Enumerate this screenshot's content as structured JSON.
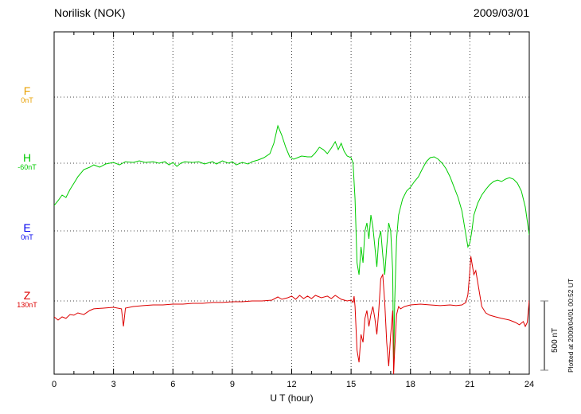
{
  "header": {
    "title": "Norilisk (NOK)",
    "date": "2009/03/01"
  },
  "footer": {
    "plotted_note": "Plotted at 2009/04/01 00:52 UT"
  },
  "chart_data": {
    "type": "line",
    "title": "Norilisk (NOK)",
    "date": "2009/03/01",
    "xlabel": "U T (hour)",
    "units": "nT",
    "x_range": [
      0,
      24
    ],
    "x_ticks": [
      0,
      3,
      6,
      9,
      12,
      15,
      18,
      21,
      24
    ],
    "grid": "dotted",
    "scale_bar": {
      "label": "500 nT",
      "nT": 500
    },
    "components": [
      {
        "name": "F",
        "baseline_label": "0nT",
        "baseline_nT": 0,
        "color": "#e8a000",
        "points": []
      },
      {
        "name": "H",
        "baseline_label": "-60nT",
        "baseline_nT": -60,
        "color": "#00cc00",
        "points": [
          [
            0,
            -365
          ],
          [
            0.2,
            -330
          ],
          [
            0.4,
            -290
          ],
          [
            0.6,
            -307
          ],
          [
            0.8,
            -250
          ],
          [
            1,
            -204
          ],
          [
            1.2,
            -158
          ],
          [
            1.5,
            -106
          ],
          [
            1.8,
            -89
          ],
          [
            2,
            -72
          ],
          [
            2.3,
            -89
          ],
          [
            2.6,
            -66
          ],
          [
            3,
            -54
          ],
          [
            3.3,
            -72
          ],
          [
            3.6,
            -49
          ],
          [
            4,
            -54
          ],
          [
            4.3,
            -43
          ],
          [
            4.6,
            -54
          ],
          [
            5,
            -49
          ],
          [
            5.3,
            -60
          ],
          [
            5.6,
            -49
          ],
          [
            5.8,
            -72
          ],
          [
            6,
            -54
          ],
          [
            6.2,
            -83
          ],
          [
            6.4,
            -60
          ],
          [
            6.6,
            -49
          ],
          [
            7,
            -54
          ],
          [
            7.3,
            -49
          ],
          [
            7.6,
            -66
          ],
          [
            8,
            -49
          ],
          [
            8.2,
            -66
          ],
          [
            8.5,
            -43
          ],
          [
            8.8,
            -60
          ],
          [
            9,
            -49
          ],
          [
            9.2,
            -72
          ],
          [
            9.5,
            -54
          ],
          [
            9.8,
            -66
          ],
          [
            10,
            -49
          ],
          [
            10.3,
            -37
          ],
          [
            10.6,
            -20
          ],
          [
            10.9,
            9
          ],
          [
            11.1,
            84
          ],
          [
            11.3,
            210
          ],
          [
            11.5,
            141
          ],
          [
            11.7,
            55
          ],
          [
            11.9,
            -14
          ],
          [
            12.1,
            -31
          ],
          [
            12.3,
            -20
          ],
          [
            12.5,
            -8
          ],
          [
            12.8,
            -14
          ],
          [
            13,
            -14
          ],
          [
            13.2,
            15
          ],
          [
            13.4,
            55
          ],
          [
            13.6,
            38
          ],
          [
            13.8,
            9
          ],
          [
            14,
            49
          ],
          [
            14.2,
            95
          ],
          [
            14.35,
            38
          ],
          [
            14.5,
            84
          ],
          [
            14.65,
            26
          ],
          [
            14.8,
            -8
          ],
          [
            15,
            -20
          ],
          [
            15.1,
            -60
          ],
          [
            15.2,
            -319
          ],
          [
            15.3,
            -779
          ],
          [
            15.4,
            -865
          ],
          [
            15.5,
            -664
          ],
          [
            15.6,
            -779
          ],
          [
            15.7,
            -549
          ],
          [
            15.8,
            -491
          ],
          [
            15.9,
            -606
          ],
          [
            16,
            -434
          ],
          [
            16.1,
            -520
          ],
          [
            16.2,
            -664
          ],
          [
            16.3,
            -808
          ],
          [
            16.4,
            -606
          ],
          [
            16.5,
            -549
          ],
          [
            16.6,
            -721
          ],
          [
            16.7,
            -865
          ],
          [
            16.8,
            -664
          ],
          [
            16.9,
            -491
          ],
          [
            17,
            -549
          ],
          [
            17.1,
            -836
          ],
          [
            17.15,
            -1526
          ],
          [
            17.2,
            -1066
          ],
          [
            17.3,
            -606
          ],
          [
            17.4,
            -434
          ],
          [
            17.5,
            -376
          ],
          [
            17.6,
            -319
          ],
          [
            17.7,
            -290
          ],
          [
            17.8,
            -261
          ],
          [
            18,
            -233
          ],
          [
            18.2,
            -192
          ],
          [
            18.4,
            -158
          ],
          [
            18.6,
            -100
          ],
          [
            18.8,
            -49
          ],
          [
            19,
            -20
          ],
          [
            19.2,
            -14
          ],
          [
            19.4,
            -31
          ],
          [
            19.6,
            -60
          ],
          [
            19.8,
            -100
          ],
          [
            20,
            -158
          ],
          [
            20.2,
            -233
          ],
          [
            20.4,
            -307
          ],
          [
            20.6,
            -405
          ],
          [
            20.8,
            -578
          ],
          [
            20.9,
            -664
          ],
          [
            21,
            -635
          ],
          [
            21.1,
            -549
          ],
          [
            21.2,
            -434
          ],
          [
            21.4,
            -348
          ],
          [
            21.6,
            -290
          ],
          [
            21.8,
            -250
          ],
          [
            22,
            -215
          ],
          [
            22.2,
            -192
          ],
          [
            22.4,
            -181
          ],
          [
            22.6,
            -192
          ],
          [
            22.8,
            -175
          ],
          [
            23,
            -164
          ],
          [
            23.2,
            -175
          ],
          [
            23.4,
            -204
          ],
          [
            23.6,
            -261
          ],
          [
            23.8,
            -376
          ],
          [
            24,
            -578
          ]
        ]
      },
      {
        "name": "E",
        "baseline_label": "0nT",
        "baseline_nT": 0,
        "color": "#0000ee",
        "points": []
      },
      {
        "name": "Z",
        "baseline_label": "130nT",
        "baseline_nT": 130,
        "color": "#dd0000",
        "points": [
          [
            0,
            15
          ],
          [
            0.2,
            -8
          ],
          [
            0.4,
            15
          ],
          [
            0.6,
            4
          ],
          [
            0.8,
            32
          ],
          [
            1,
            27
          ],
          [
            1.2,
            44
          ],
          [
            1.5,
            32
          ],
          [
            1.8,
            61
          ],
          [
            2,
            73
          ],
          [
            2.5,
            78
          ],
          [
            3,
            84
          ],
          [
            3.4,
            73
          ],
          [
            3.5,
            -54
          ],
          [
            3.6,
            78
          ],
          [
            4,
            90
          ],
          [
            4.5,
            96
          ],
          [
            5,
            101
          ],
          [
            5.5,
            101
          ],
          [
            6,
            107
          ],
          [
            6.5,
            107
          ],
          [
            7,
            113
          ],
          [
            7.5,
            113
          ],
          [
            8,
            119
          ],
          [
            8.5,
            119
          ],
          [
            9,
            124
          ],
          [
            9.5,
            124
          ],
          [
            10,
            130
          ],
          [
            10.5,
            130
          ],
          [
            11,
            136
          ],
          [
            11.3,
            159
          ],
          [
            11.5,
            142
          ],
          [
            11.8,
            153
          ],
          [
            12,
            165
          ],
          [
            12.2,
            142
          ],
          [
            12.4,
            170
          ],
          [
            12.6,
            147
          ],
          [
            12.8,
            165
          ],
          [
            13,
            147
          ],
          [
            13.2,
            170
          ],
          [
            13.5,
            153
          ],
          [
            13.8,
            165
          ],
          [
            14,
            147
          ],
          [
            14.2,
            170
          ],
          [
            14.5,
            142
          ],
          [
            14.8,
            130
          ],
          [
            15,
            136
          ],
          [
            15.1,
            119
          ],
          [
            15.15,
            165
          ],
          [
            15.2,
            90
          ],
          [
            15.3,
            -226
          ],
          [
            15.4,
            -313
          ],
          [
            15.5,
            -112
          ],
          [
            15.6,
            -169
          ],
          [
            15.7,
            4
          ],
          [
            15.8,
            61
          ],
          [
            15.9,
            -54
          ],
          [
            16,
            32
          ],
          [
            16.1,
            90
          ],
          [
            16.2,
            4
          ],
          [
            16.3,
            -112
          ],
          [
            16.4,
            61
          ],
          [
            16.5,
            291
          ],
          [
            16.6,
            320
          ],
          [
            16.7,
            119
          ],
          [
            16.8,
            -169
          ],
          [
            16.9,
            -341
          ],
          [
            17,
            -112
          ],
          [
            17.1,
            61
          ],
          [
            17.15,
            -399
          ],
          [
            17.2,
            -226
          ],
          [
            17.3,
            32
          ],
          [
            17.4,
            90
          ],
          [
            17.5,
            73
          ],
          [
            17.7,
            90
          ],
          [
            18,
            101
          ],
          [
            18.5,
            107
          ],
          [
            19,
            101
          ],
          [
            19.5,
            96
          ],
          [
            20,
            101
          ],
          [
            20.3,
            96
          ],
          [
            20.6,
            101
          ],
          [
            20.8,
            119
          ],
          [
            20.9,
            176
          ],
          [
            21,
            349
          ],
          [
            21.05,
            452
          ],
          [
            21.1,
            406
          ],
          [
            21.2,
            320
          ],
          [
            21.3,
            349
          ],
          [
            21.4,
            262
          ],
          [
            21.5,
            176
          ],
          [
            21.6,
            90
          ],
          [
            21.8,
            44
          ],
          [
            22,
            27
          ],
          [
            22.3,
            15
          ],
          [
            22.6,
            4
          ],
          [
            23,
            -8
          ],
          [
            23.3,
            -25
          ],
          [
            23.5,
            -42
          ],
          [
            23.7,
            -19
          ],
          [
            23.8,
            -54
          ],
          [
            23.9,
            -25
          ],
          [
            24,
            136
          ]
        ]
      }
    ]
  }
}
